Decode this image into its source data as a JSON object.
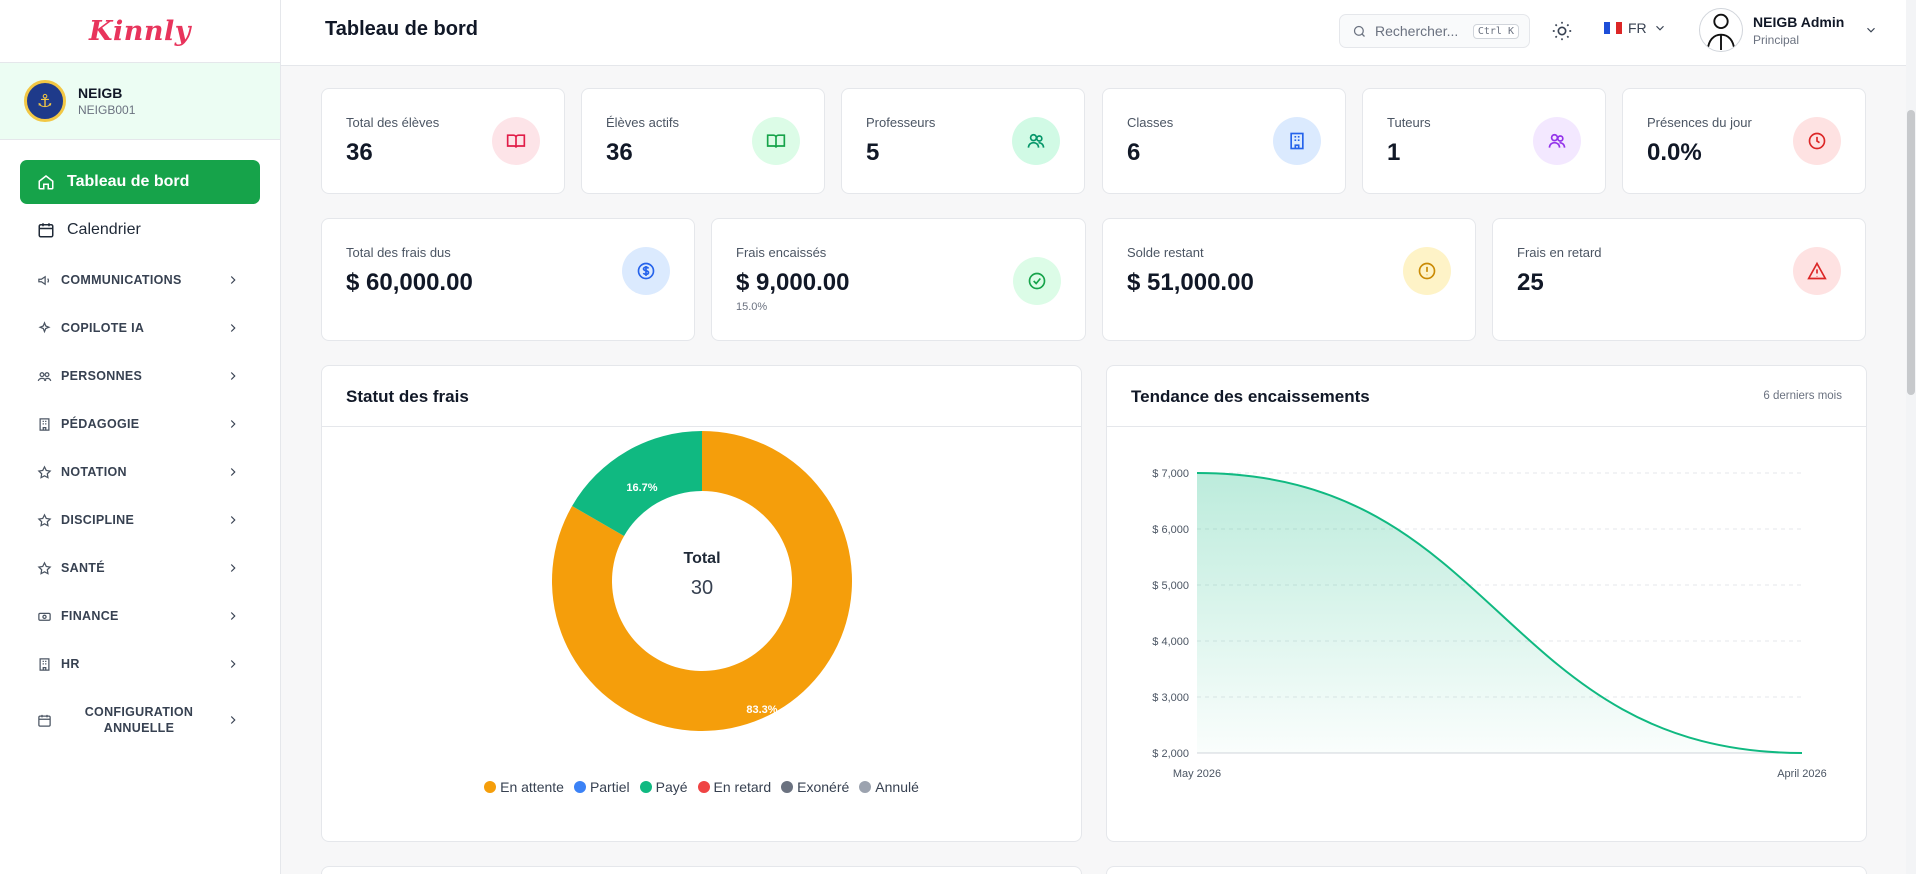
{
  "app": {
    "logo_text": "Kinnly"
  },
  "school": {
    "name": "NEIGB",
    "code": "NEIGB001"
  },
  "sidebar": {
    "main": [
      {
        "label": "Tableau de bord",
        "icon": "home-icon",
        "active": true
      },
      {
        "label": "Calendrier",
        "icon": "calendar-icon",
        "active": false
      }
    ],
    "groups": [
      {
        "label": "COMMUNICATIONS",
        "icon": "megaphone-icon"
      },
      {
        "label": "COPILOTE IA",
        "icon": "sparkles-icon"
      },
      {
        "label": "PERSONNES",
        "icon": "people-icon"
      },
      {
        "label": "PÉDAGOGIE",
        "icon": "building-icon"
      },
      {
        "label": "NOTATION",
        "icon": "star-icon"
      },
      {
        "label": "DISCIPLINE",
        "icon": "star-icon"
      },
      {
        "label": "SANTÉ",
        "icon": "star-icon"
      },
      {
        "label": "FINANCE",
        "icon": "money-icon"
      },
      {
        "label": "HR",
        "icon": "building-icon"
      },
      {
        "label_line1": "CONFIGURATION",
        "label_line2": "ANNUELLE",
        "icon": "calendar-icon"
      }
    ]
  },
  "header": {
    "title": "Tableau de bord",
    "search_placeholder": "Rechercher...",
    "search_shortcut": "Ctrl K",
    "language": "FR",
    "user_name": "NEIGB Admin",
    "user_role": "Principal"
  },
  "stats": [
    {
      "label": "Total des élèves",
      "value": "36",
      "icon": "book-icon",
      "color": "#e11d48",
      "bg": "#fde4e8"
    },
    {
      "label": "Élèves actifs",
      "value": "36",
      "icon": "book-icon",
      "color": "#16a34a",
      "bg": "#dcfce7"
    },
    {
      "label": "Professeurs",
      "value": "5",
      "icon": "users-icon",
      "color": "#059669",
      "bg": "#d1fae5"
    },
    {
      "label": "Classes",
      "value": "6",
      "icon": "building-icon",
      "color": "#2563eb",
      "bg": "#dbeafe"
    },
    {
      "label": "Tuteurs",
      "value": "1",
      "icon": "users-icon",
      "color": "#9333ea",
      "bg": "#f3e8ff"
    },
    {
      "label": "Présences du jour",
      "value": "0.0%",
      "icon": "clock-icon",
      "color": "#dc2626",
      "bg": "#fee2e2"
    }
  ],
  "fees": [
    {
      "label": "Total des frais dus",
      "value": "$ 60,000.00",
      "sub": "",
      "icon": "dollar-icon",
      "color": "#2563eb",
      "bg": "#dbeafe"
    },
    {
      "label": "Frais encaissés",
      "value": "$ 9,000.00",
      "sub": "15.0%",
      "icon": "check-circle-icon",
      "color": "#16a34a",
      "bg": "#dcfce7"
    },
    {
      "label": "Solde restant",
      "value": "$ 51,000.00",
      "sub": "",
      "icon": "alert-circle-icon",
      "color": "#ca8a04",
      "bg": "#fef3c7"
    },
    {
      "label": "Frais en retard",
      "value": "25",
      "sub": "",
      "icon": "warning-icon",
      "color": "#dc2626",
      "bg": "#fee2e2"
    }
  ],
  "fee_status": {
    "title": "Statut des frais",
    "center_label": "Total",
    "center_value": "30",
    "slice_labels": [
      "83.3%",
      "16.7%"
    ],
    "legend": [
      {
        "label": "En attente",
        "color": "#f59e0b"
      },
      {
        "label": "Partiel",
        "color": "#3b82f6"
      },
      {
        "label": "Payé",
        "color": "#10b981"
      },
      {
        "label": "En retard",
        "color": "#ef4444"
      },
      {
        "label": "Exonéré",
        "color": "#6b7280"
      },
      {
        "label": "Annulé",
        "color": "#9ca3af"
      }
    ]
  },
  "trend": {
    "title": "Tendance des encaissements",
    "note": "6 derniers mois"
  },
  "chart_data": [
    {
      "type": "pie",
      "title": "Statut des frais",
      "categories": [
        "En attente",
        "Partiel",
        "Payé",
        "En retard",
        "Exonéré",
        "Annulé"
      ],
      "values": [
        25,
        0,
        5,
        0,
        0,
        0
      ],
      "colors": [
        "#f59e0b",
        "#3b82f6",
        "#10b981",
        "#ef4444",
        "#6b7280",
        "#9ca3af"
      ],
      "legend": "bottom"
    },
    {
      "type": "area",
      "title": "Tendance des encaissements",
      "x": [
        "May 2026",
        "April 2026"
      ],
      "series": [
        {
          "values": [
            7000,
            2000
          ],
          "color": "#10b981"
        }
      ],
      "y_ticks": [
        "$ 2,000",
        "$ 3,000",
        "$ 4,000",
        "$ 5,000",
        "$ 6,000",
        "$ 7,000"
      ],
      "ylim": [
        2000,
        7000
      ],
      "grid": true
    }
  ]
}
